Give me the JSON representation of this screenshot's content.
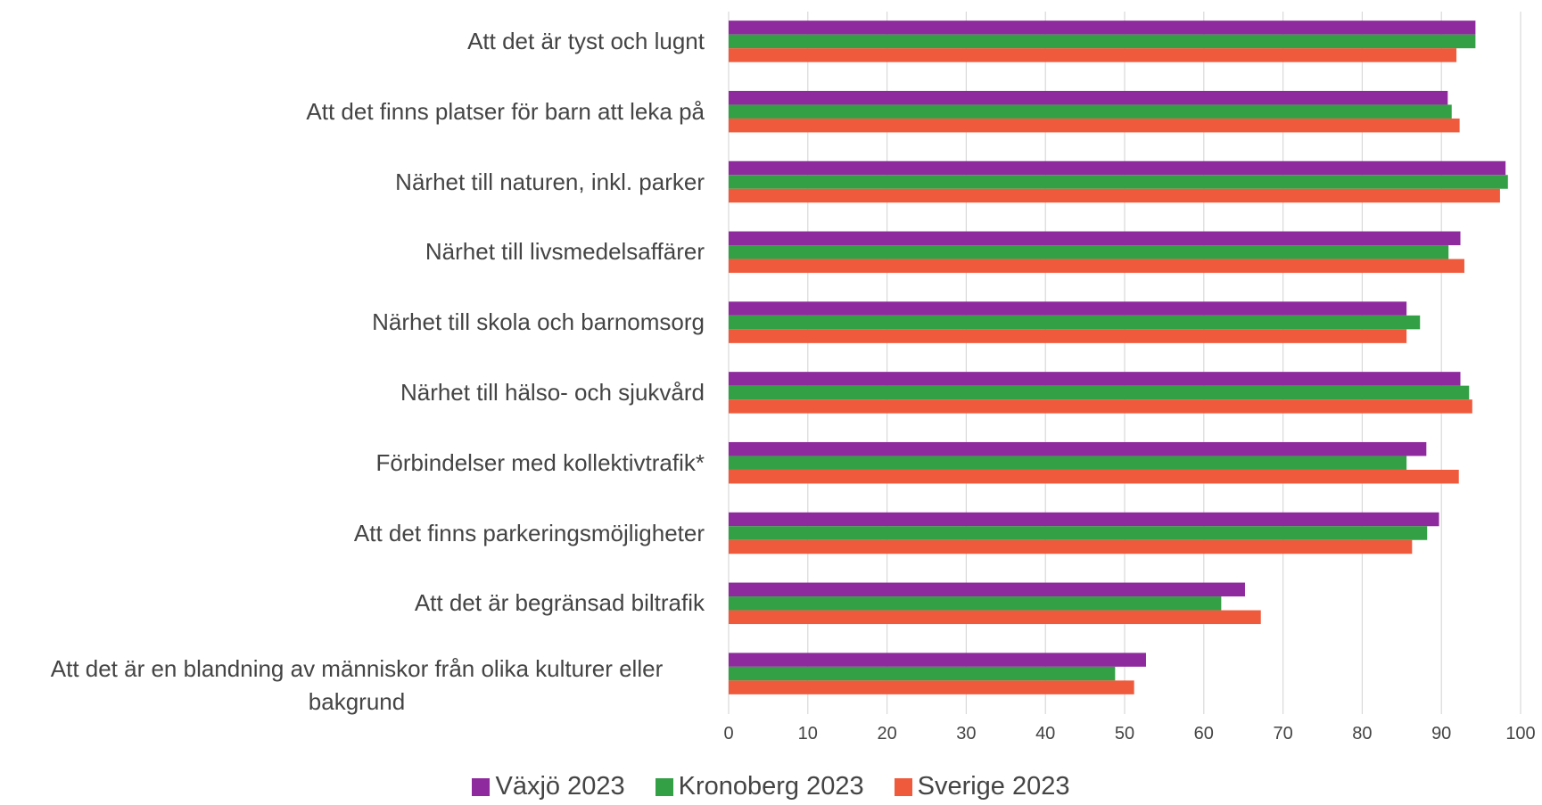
{
  "chart_data": {
    "type": "bar",
    "orientation": "horizontal",
    "categories": [
      "Att det är tyst och lugnt",
      "Att det finns platser för barn att leka på",
      "Närhet till naturen, inkl. parker",
      "Närhet till livsmedelsaffärer",
      "Närhet till skola och barnomsorg",
      "Närhet till hälso- och sjukvård",
      "Förbindelser med kollektivtrafik*",
      "Att det finns parkeringsmöjligheter",
      "Att det är begränsad biltrafik",
      "Att det är en blandning av människor från olika kulturer eller bakgrund"
    ],
    "series": [
      {
        "name": "Växjö 2023",
        "color": "#8e2a9e",
        "values": [
          94.3,
          90.8,
          98.1,
          92.4,
          85.6,
          92.4,
          88.1,
          89.7,
          65.2,
          52.7
        ]
      },
      {
        "name": "Kronoberg 2023",
        "color": "#34a046",
        "values": [
          94.3,
          91.3,
          98.4,
          90.9,
          87.3,
          93.5,
          85.6,
          88.2,
          62.2,
          48.8
        ]
      },
      {
        "name": "Sverige 2023",
        "color": "#f05a3c",
        "values": [
          91.9,
          92.3,
          97.4,
          92.9,
          85.6,
          93.9,
          92.2,
          86.3,
          67.2,
          51.2
        ]
      }
    ],
    "xlim": [
      0,
      100
    ],
    "xticks": [
      0,
      10,
      20,
      30,
      40,
      50,
      60,
      70,
      80,
      90,
      100
    ],
    "grid": true,
    "legend": "bottom"
  }
}
